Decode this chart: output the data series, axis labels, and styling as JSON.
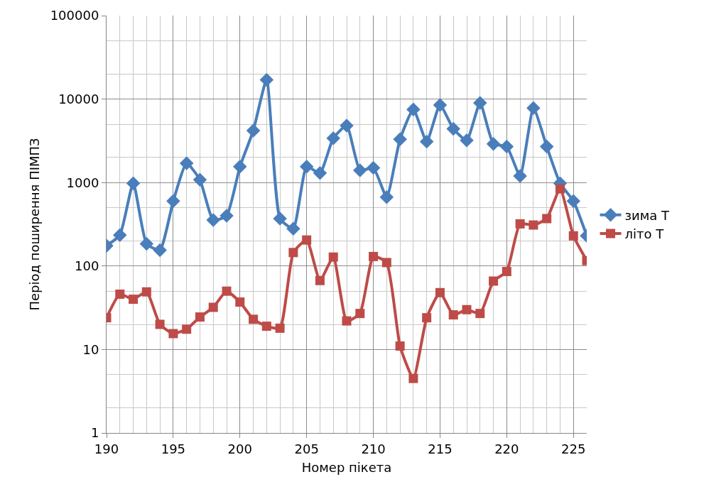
{
  "chart_data": {
    "type": "line",
    "xlabel": "Номер пікета",
    "ylabel": "Період поширення ПІМПЗ",
    "x": [
      190,
      191,
      192,
      193,
      194,
      195,
      196,
      197,
      198,
      199,
      200,
      201,
      202,
      203,
      204,
      205,
      206,
      207,
      208,
      209,
      210,
      211,
      212,
      213,
      214,
      215,
      216,
      217,
      218,
      219,
      220,
      221,
      222,
      223,
      224,
      225,
      226
    ],
    "series": [
      {
        "name": "зима Т",
        "color": "#4a7ebb",
        "marker": "diamond",
        "values": [
          175,
          235,
          980,
          185,
          155,
          600,
          1700,
          1080,
          355,
          400,
          1550,
          4200,
          17000,
          370,
          280,
          1550,
          1300,
          3400,
          4800,
          1400,
          1500,
          670,
          3300,
          7500,
          3100,
          8500,
          4400,
          3200,
          9000,
          2900,
          2700,
          1200,
          7800,
          2700,
          980,
          600,
          230
        ]
      },
      {
        "name": "літо Т",
        "color": "#be4b48",
        "marker": "square",
        "values": [
          24,
          46,
          40,
          49,
          20,
          15.5,
          17.5,
          24.5,
          32,
          50,
          37,
          23,
          19,
          18,
          145,
          205,
          67,
          128,
          22,
          27,
          130,
          110,
          11,
          4.5,
          24,
          48,
          26,
          30,
          27,
          66,
          86,
          320,
          310,
          370,
          840,
          230,
          116
        ]
      }
    ],
    "log": "y",
    "xlim": [
      190,
      226
    ],
    "xticks": [
      190,
      195,
      200,
      205,
      210,
      215,
      220,
      225
    ],
    "ylim": [
      1,
      100000
    ],
    "yticks": [
      1,
      10,
      100,
      1000,
      10000,
      100000
    ],
    "grid": true,
    "legend": "right",
    "line_style": "solid"
  }
}
